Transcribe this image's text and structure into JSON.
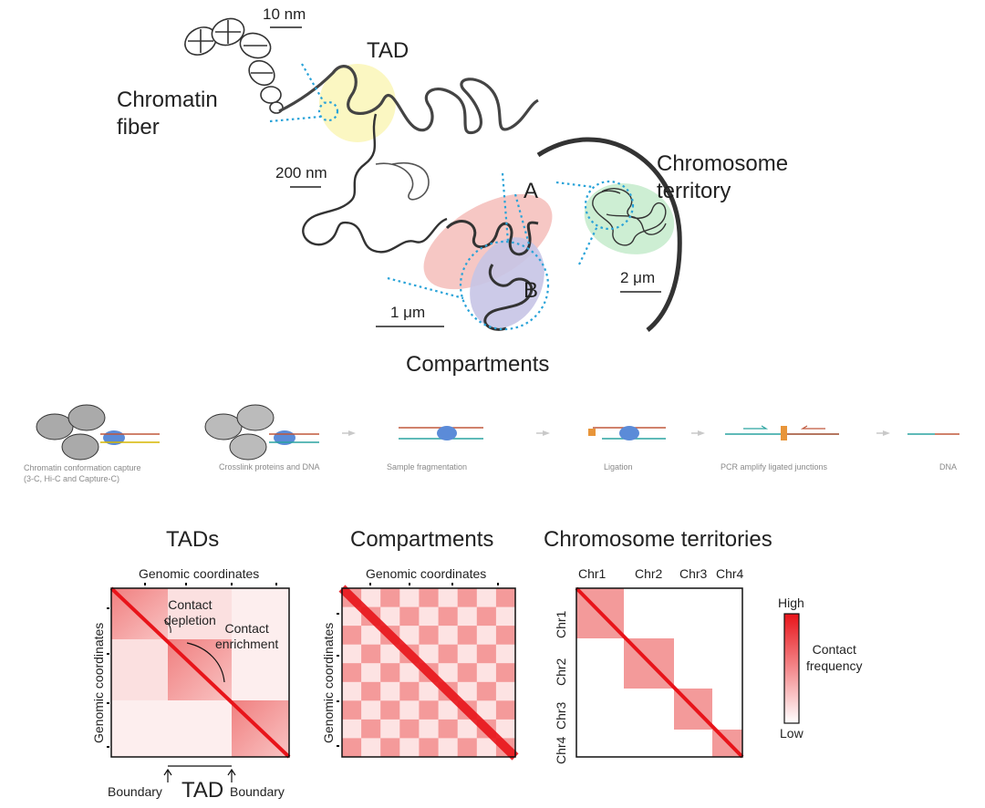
{
  "structure": {
    "chromatin_fiber": "Chromatin\nfiber",
    "tad": "TAD",
    "scale_10nm": "10 nm",
    "scale_200nm": "200 nm",
    "scale_1um": "1 μm",
    "scale_2um": "2 μm",
    "compartment_a": "A",
    "compartment_b": "B",
    "chromosome_territory": "Chromosome\nterritory",
    "compartments": "Compartments"
  },
  "workflow": {
    "steps": [
      "Chromatin conformation capture\n(3-C, Hi-C and Capture-C)",
      "Crosslink proteins and DNA",
      "Sample fragmentation",
      "Ligation",
      "PCR amplify ligated junctions",
      "DNA"
    ]
  },
  "maps": {
    "tads": {
      "title": "TADs",
      "top_axis": "Genomic coordinates",
      "left_axis": "Genomic coordinates",
      "contact_depletion": "Contact\ndepletion",
      "contact_enrichment": "Contact\nenrichment",
      "boundary_left": "Boundary",
      "tad_label": "TAD",
      "boundary_right": "Boundary"
    },
    "compartments": {
      "title": "Compartments",
      "top_axis": "Genomic coordinates",
      "left_axis": "Genomic coordinates"
    },
    "territories": {
      "title": "Chromosome territories",
      "columns": [
        "Chr1",
        "Chr2",
        "Chr3",
        "Chr4"
      ],
      "rows": [
        "Chr1",
        "Chr2",
        "Chr3",
        "Chr4"
      ]
    }
  },
  "legend": {
    "high": "High",
    "title": "Contact\nfrequency",
    "low": "Low",
    "high_color": "#e8141a",
    "low_color": "#ffffff"
  }
}
